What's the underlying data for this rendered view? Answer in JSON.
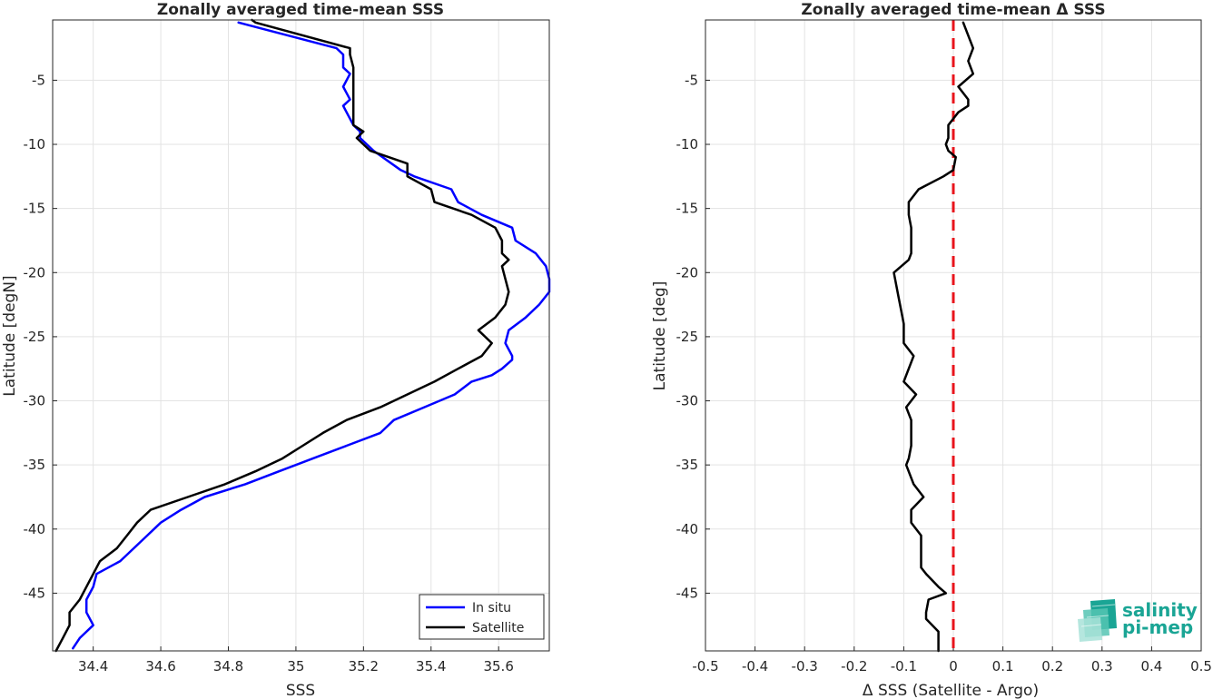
{
  "chart_data": [
    {
      "type": "line",
      "title": "Zonally averaged time-mean SSS",
      "xlabel": "SSS",
      "ylabel": "Latitude [degN]",
      "xlim": [
        34.28,
        35.75
      ],
      "ylim": [
        -49.5,
        -0.3
      ],
      "xticks": [
        34.4,
        34.6,
        34.8,
        35,
        35.2,
        35.4,
        35.6
      ],
      "xtick_labels": [
        "34.4",
        "34.6",
        "34.8",
        "35",
        "35.2",
        "35.4",
        "35.6"
      ],
      "yticks": [
        -5,
        -10,
        -15,
        -20,
        -25,
        -30,
        -35,
        -40,
        -45
      ],
      "ytick_labels": [
        "-5",
        "-10",
        "-15",
        "-20",
        "-25",
        "-30",
        "-35",
        "-40",
        "-45"
      ],
      "grid": true,
      "legend_position": "bottom-right",
      "series": [
        {
          "name": "In situ",
          "color": "#0000ff",
          "points": [
            [
              34.83,
              -0.5
            ],
            [
              35.12,
              -2.5
            ],
            [
              35.14,
              -3.0
            ],
            [
              35.14,
              -4.0
            ],
            [
              35.16,
              -4.5
            ],
            [
              35.14,
              -5.5
            ],
            [
              35.16,
              -6.5
            ],
            [
              35.14,
              -7.0
            ],
            [
              35.17,
              -8.5
            ],
            [
              35.19,
              -9.0
            ],
            [
              35.19,
              -9.5
            ],
            [
              35.23,
              -10.5
            ],
            [
              35.31,
              -12.0
            ],
            [
              35.35,
              -12.5
            ],
            [
              35.46,
              -13.5
            ],
            [
              35.48,
              -14.5
            ],
            [
              35.55,
              -15.5
            ],
            [
              35.64,
              -16.5
            ],
            [
              35.65,
              -17.5
            ],
            [
              35.71,
              -18.5
            ],
            [
              35.74,
              -19.5
            ],
            [
              35.75,
              -20.5
            ],
            [
              35.75,
              -21.5
            ],
            [
              35.72,
              -22.5
            ],
            [
              35.68,
              -23.5
            ],
            [
              35.63,
              -24.5
            ],
            [
              35.62,
              -25.5
            ],
            [
              35.64,
              -26.5
            ],
            [
              35.64,
              -26.8
            ],
            [
              35.61,
              -27.5
            ],
            [
              35.58,
              -28.0
            ],
            [
              35.52,
              -28.5
            ],
            [
              35.47,
              -29.5
            ],
            [
              35.38,
              -30.5
            ],
            [
              35.29,
              -31.5
            ],
            [
              35.25,
              -32.5
            ],
            [
              35.15,
              -33.5
            ],
            [
              35.05,
              -34.5
            ],
            [
              34.95,
              -35.5
            ],
            [
              34.85,
              -36.5
            ],
            [
              34.73,
              -37.5
            ],
            [
              34.66,
              -38.5
            ],
            [
              34.6,
              -39.5
            ],
            [
              34.56,
              -40.5
            ],
            [
              34.52,
              -41.5
            ],
            [
              34.48,
              -42.5
            ],
            [
              34.41,
              -43.5
            ],
            [
              34.4,
              -44.5
            ],
            [
              34.38,
              -45.5
            ],
            [
              34.38,
              -46.5
            ],
            [
              34.4,
              -47.5
            ],
            [
              34.36,
              -48.5
            ],
            [
              34.34,
              -49.3
            ]
          ]
        },
        {
          "name": "Satellite",
          "color": "#000000",
          "points": [
            [
              34.87,
              -0.3
            ],
            [
              34.88,
              -0.5
            ],
            [
              35.16,
              -2.5
            ],
            [
              35.16,
              -3.0
            ],
            [
              35.17,
              -4.0
            ],
            [
              35.17,
              -5.0
            ],
            [
              35.17,
              -6.0
            ],
            [
              35.17,
              -7.0
            ],
            [
              35.17,
              -8.5
            ],
            [
              35.2,
              -9.0
            ],
            [
              35.18,
              -9.5
            ],
            [
              35.22,
              -10.5
            ],
            [
              35.33,
              -11.5
            ],
            [
              35.33,
              -12.5
            ],
            [
              35.4,
              -13.5
            ],
            [
              35.41,
              -14.5
            ],
            [
              35.52,
              -15.5
            ],
            [
              35.59,
              -16.5
            ],
            [
              35.61,
              -17.5
            ],
            [
              35.61,
              -18.5
            ],
            [
              35.63,
              -19.0
            ],
            [
              35.61,
              -19.5
            ],
            [
              35.62,
              -20.5
            ],
            [
              35.63,
              -21.5
            ],
            [
              35.62,
              -22.5
            ],
            [
              35.59,
              -23.5
            ],
            [
              35.54,
              -24.5
            ],
            [
              35.58,
              -25.5
            ],
            [
              35.55,
              -26.5
            ],
            [
              35.48,
              -27.5
            ],
            [
              35.41,
              -28.5
            ],
            [
              35.33,
              -29.5
            ],
            [
              35.25,
              -30.5
            ],
            [
              35.15,
              -31.5
            ],
            [
              35.08,
              -32.5
            ],
            [
              35.02,
              -33.5
            ],
            [
              34.96,
              -34.5
            ],
            [
              34.88,
              -35.5
            ],
            [
              34.79,
              -36.5
            ],
            [
              34.68,
              -37.5
            ],
            [
              34.57,
              -38.5
            ],
            [
              34.53,
              -39.5
            ],
            [
              34.5,
              -40.5
            ],
            [
              34.47,
              -41.5
            ],
            [
              34.42,
              -42.5
            ],
            [
              34.4,
              -43.5
            ],
            [
              34.38,
              -44.5
            ],
            [
              34.36,
              -45.5
            ],
            [
              34.33,
              -46.5
            ],
            [
              34.33,
              -47.5
            ],
            [
              34.31,
              -48.5
            ],
            [
              34.29,
              -49.5
            ]
          ]
        }
      ]
    },
    {
      "type": "line",
      "title": "Zonally averaged time-mean Δ SSS",
      "xlabel": "Δ SSS (Satellite - Argo)",
      "ylabel": "Latitude [deg]",
      "xlim": [
        -0.5,
        0.5
      ],
      "ylim": [
        -49.5,
        -0.3
      ],
      "xticks": [
        -0.5,
        -0.4,
        -0.3,
        -0.2,
        -0.1,
        0,
        0.1,
        0.2,
        0.3,
        0.4,
        0.5
      ],
      "xtick_labels": [
        "-0.5",
        "-0.4",
        "-0.3",
        "-0.2",
        "-0.1",
        "0",
        "0.1",
        "0.2",
        "0.3",
        "0.4",
        "0.5"
      ],
      "yticks": [
        -5,
        -10,
        -15,
        -20,
        -25,
        -30,
        -35,
        -40,
        -45
      ],
      "ytick_labels": [
        "-5",
        "-10",
        "-15",
        "-20",
        "-25",
        "-30",
        "-35",
        "-40",
        "-45"
      ],
      "grid": true,
      "reference_line": {
        "x": 0,
        "color": "#e8141c",
        "style": "dashed"
      },
      "series": [
        {
          "color": "#000000",
          "points": [
            [
              0.02,
              -0.5
            ],
            [
              0.04,
              -2.5
            ],
            [
              0.03,
              -3.5
            ],
            [
              0.04,
              -4.5
            ],
            [
              0.01,
              -5.5
            ],
            [
              0.03,
              -6.5
            ],
            [
              0.03,
              -7.0
            ],
            [
              0.01,
              -7.5
            ],
            [
              -0.01,
              -8.5
            ],
            [
              -0.01,
              -9.5
            ],
            [
              -0.015,
              -10.0
            ],
            [
              -0.01,
              -10.5
            ],
            [
              0.005,
              -11.0
            ],
            [
              0.0,
              -12.0
            ],
            [
              -0.02,
              -12.5
            ],
            [
              -0.07,
              -13.5
            ],
            [
              -0.09,
              -14.5
            ],
            [
              -0.09,
              -15.5
            ],
            [
              -0.085,
              -16.5
            ],
            [
              -0.085,
              -17.5
            ],
            [
              -0.085,
              -18.5
            ],
            [
              -0.09,
              -19.0
            ],
            [
              -0.12,
              -20.0
            ],
            [
              -0.115,
              -21.0
            ],
            [
              -0.11,
              -22.0
            ],
            [
              -0.105,
              -23.0
            ],
            [
              -0.1,
              -24.0
            ],
            [
              -0.1,
              -25.5
            ],
            [
              -0.08,
              -26.5
            ],
            [
              -0.1,
              -28.5
            ],
            [
              -0.075,
              -29.5
            ],
            [
              -0.095,
              -30.5
            ],
            [
              -0.085,
              -31.5
            ],
            [
              -0.085,
              -32.5
            ],
            [
              -0.085,
              -33.5
            ],
            [
              -0.09,
              -34.5
            ],
            [
              -0.095,
              -35.0
            ],
            [
              -0.08,
              -36.5
            ],
            [
              -0.06,
              -37.5
            ],
            [
              -0.085,
              -38.5
            ],
            [
              -0.085,
              -39.5
            ],
            [
              -0.065,
              -40.5
            ],
            [
              -0.065,
              -42.0
            ],
            [
              -0.065,
              -43.0
            ],
            [
              -0.055,
              -43.5
            ],
            [
              -0.03,
              -44.5
            ],
            [
              -0.015,
              -45.0
            ],
            [
              -0.05,
              -45.5
            ],
            [
              -0.055,
              -46.5
            ],
            [
              -0.055,
              -47.0
            ],
            [
              -0.03,
              -48.0
            ],
            [
              -0.03,
              -49.0
            ],
            [
              -0.03,
              -49.5
            ]
          ]
        }
      ]
    }
  ],
  "legend": {
    "items": [
      {
        "label": "In situ",
        "color": "#0000ff"
      },
      {
        "label": "Satellite",
        "color": "#000000"
      }
    ]
  },
  "logo": {
    "line1": "salinity",
    "line2": "pi-mep",
    "color": "#1aa595"
  }
}
